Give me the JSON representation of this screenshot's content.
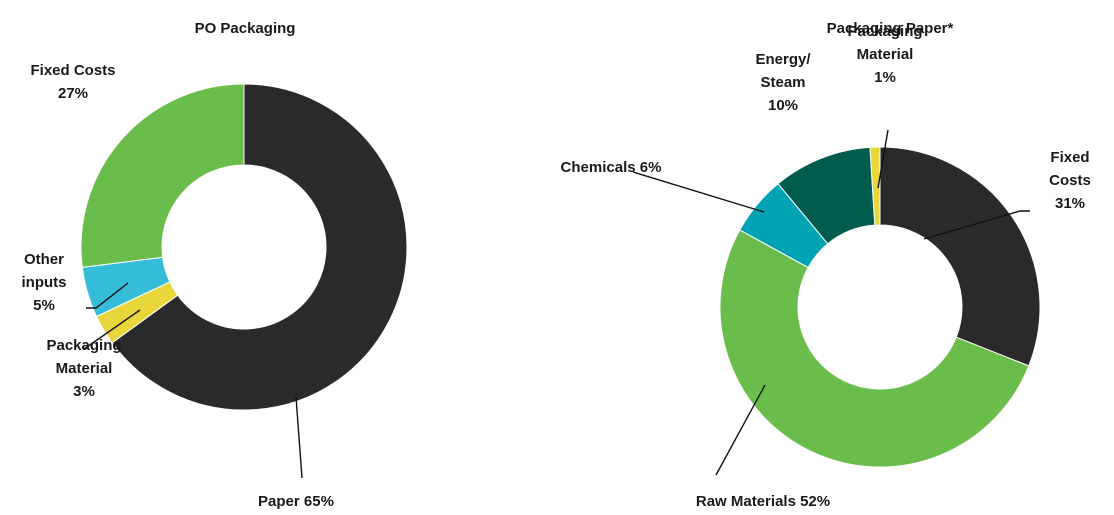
{
  "chart_data": [
    {
      "type": "pie",
      "title": "PO Packaging",
      "slices": [
        {
          "key": "paper",
          "value": 65,
          "color": "#2a2a2a",
          "label_lines": [
            "Paper 65%"
          ]
        },
        {
          "key": "packaging_material",
          "value": 3,
          "color": "#e8d63a",
          "label_lines": [
            "Packaging",
            "Material",
            "3%"
          ]
        },
        {
          "key": "other_inputs",
          "value": 5,
          "color": "#35bcd8",
          "label_lines": [
            "Other",
            "inputs",
            "5%"
          ]
        },
        {
          "key": "fixed_costs",
          "value": 27,
          "color": "#6bbd4b",
          "label_lines": [
            "Fixed Costs",
            "27%"
          ]
        }
      ]
    },
    {
      "type": "pie",
      "title": "Packaging Paper*",
      "slices": [
        {
          "key": "fixed_costs",
          "value": 31,
          "color": "#2a2a2a",
          "label_lines": [
            "Fixed",
            "Costs",
            "31%"
          ]
        },
        {
          "key": "raw_materials",
          "value": 52,
          "color": "#6bbd4b",
          "label_lines": [
            "Raw Materials 52%"
          ]
        },
        {
          "key": "chemicals",
          "value": 6,
          "color": "#00a3b4",
          "label_lines": [
            "Chemicals 6%"
          ]
        },
        {
          "key": "energy_steam",
          "value": 10,
          "color": "#005c4c",
          "label_lines": [
            "Energy/",
            "Steam",
            "10%"
          ]
        },
        {
          "key": "packaging_material",
          "value": 1,
          "color": "#e8d63a",
          "label_lines": [
            "Packaging",
            "Material",
            "1%"
          ]
        }
      ]
    }
  ]
}
